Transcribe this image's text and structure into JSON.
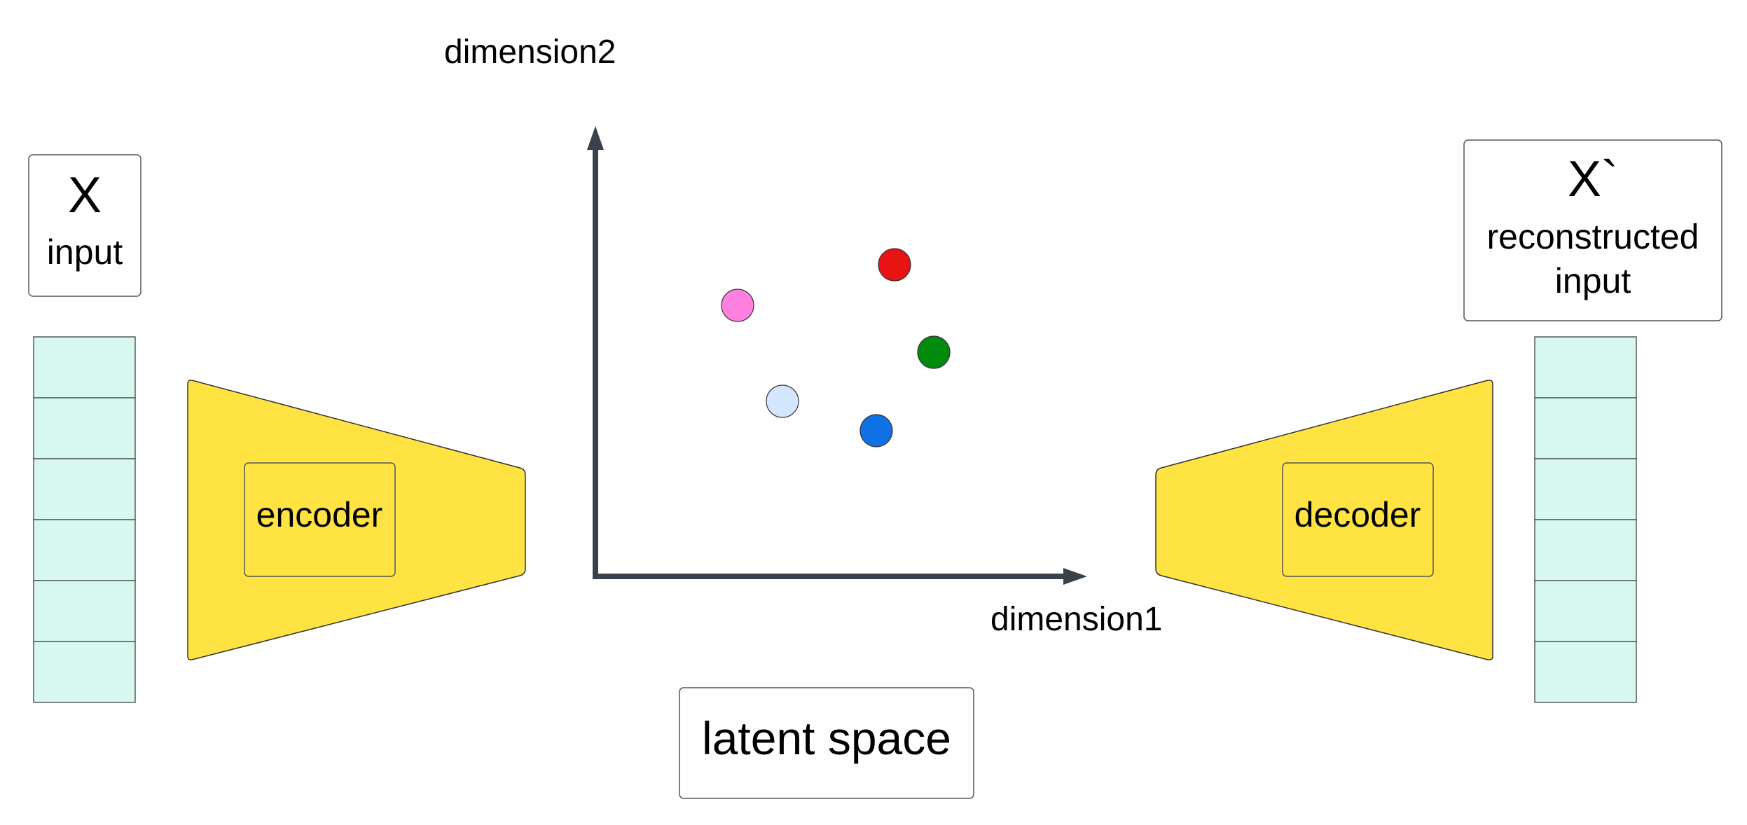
{
  "input": {
    "symbol": "X",
    "label": "input",
    "vector_cells": 6
  },
  "output": {
    "symbol": "X`",
    "label_line1": "reconstructed",
    "label_line2": "input",
    "vector_cells": 6
  },
  "encoder": {
    "label": "encoder"
  },
  "decoder": {
    "label": "decoder"
  },
  "latent": {
    "title": "latent space",
    "x_axis_label": "dimension1",
    "y_axis_label": "dimension2",
    "points": [
      {
        "name": "red",
        "color": "#e81313"
      },
      {
        "name": "pink",
        "color": "#ff80df"
      },
      {
        "name": "green",
        "color": "#008a0e"
      },
      {
        "name": "light-blue",
        "color": "#d3e5ff"
      },
      {
        "name": "blue",
        "color": "#1071e5"
      }
    ]
  },
  "colors": {
    "funnel": "#ffe342",
    "vector_cell": "#d7f8f0",
    "axis": "#3a414a",
    "stroke": "#333333"
  }
}
